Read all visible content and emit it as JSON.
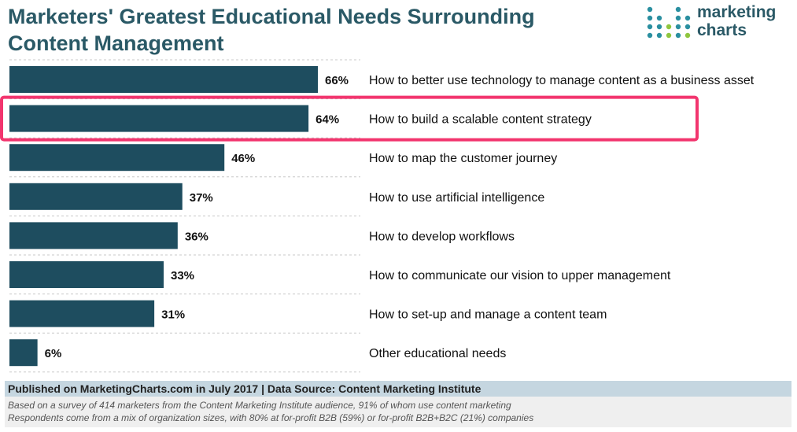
{
  "title": "Marketers' Greatest Educational Needs Surrounding Content Management",
  "logo": {
    "line1": "marketing",
    "line2": "charts"
  },
  "chart_data": {
    "type": "bar",
    "orientation": "horizontal",
    "categories": [
      "How to better use technology to manage content as a business asset",
      "How to build a scalable content strategy",
      "How to map the customer journey",
      "How to use artificial intelligence",
      "How to develop workflows",
      "How to communicate our vision to upper management",
      "How to set-up and manage a content team",
      "Other educational needs"
    ],
    "values": [
      66,
      64,
      46,
      37,
      36,
      33,
      31,
      6
    ],
    "value_labels": [
      "66%",
      "64%",
      "46%",
      "37%",
      "36%",
      "33%",
      "31%",
      "6%"
    ],
    "highlighted_index": 1,
    "xlim": [
      0,
      74
    ],
    "grid": true,
    "bar_color": "#1e4d5f",
    "highlight_color": "#f2356e"
  },
  "footer": {
    "source": "Published on MarketingCharts.com in July 2017 | Data Source: Content Marketing Institute",
    "note1": "Based on a survey of 414 marketers from the Content Marketing Institute audience, 91% of whom use content marketing",
    "note2": "Respondents come from a mix of organization sizes, with 80% at for-profit B2B (59%) or for-profit B2B+B2C (21%) companies"
  }
}
